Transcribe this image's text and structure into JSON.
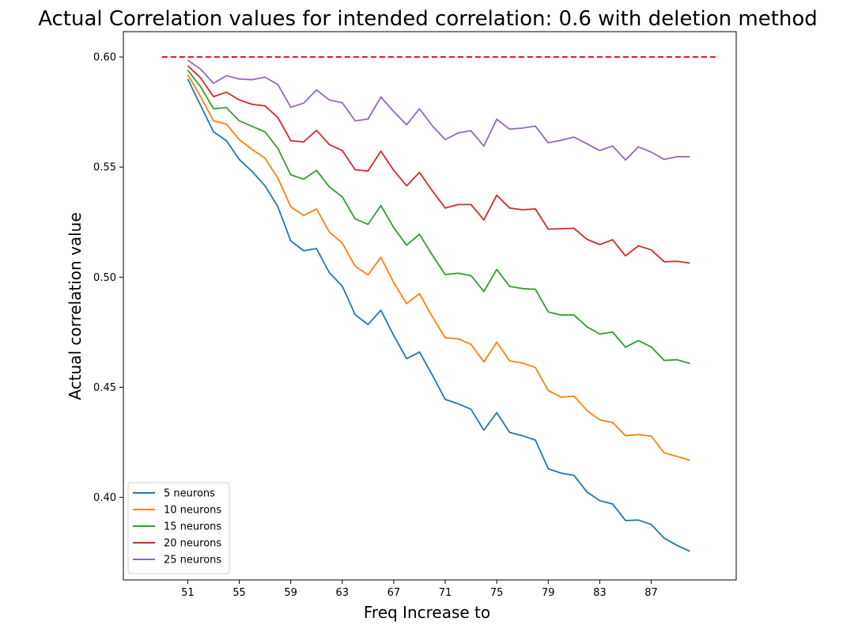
{
  "chart_data": {
    "type": "line",
    "title": "Actual Correlation values for intended correlation:  0.6 with deletion method",
    "xlabel": "Freq Increase to",
    "ylabel": "Actual correlation value",
    "xlim": [
      46,
      93.6
    ],
    "ylim": [
      0.3625,
      0.6115
    ],
    "x_ticks": [
      51,
      55,
      59,
      63,
      67,
      71,
      75,
      79,
      83,
      87
    ],
    "x_tick_labels": [
      "51",
      "55",
      "59",
      "63",
      "67",
      "71",
      "75",
      "79",
      "83",
      "87"
    ],
    "y_ticks": [
      0.4,
      0.45,
      0.5,
      0.55,
      0.6
    ],
    "y_tick_labels": [
      "0.40",
      "0.45",
      "0.50",
      "0.55",
      "0.60"
    ],
    "grid": false,
    "legend_position": "lower-left",
    "x": [
      51,
      52,
      53,
      54,
      55,
      56,
      57,
      58,
      59,
      60,
      61,
      62,
      63,
      64,
      65,
      66,
      67,
      68,
      69,
      70,
      71,
      72,
      73,
      74,
      75,
      76,
      77,
      78,
      79,
      80,
      81,
      82,
      83,
      84,
      85,
      86,
      87,
      88,
      89,
      90
    ],
    "reference_line": {
      "y": 0.6,
      "x_start": 49,
      "x_end": 92,
      "color": "#e31a1c",
      "style": "dashed"
    },
    "series": [
      {
        "name": "5 neurons",
        "color": "#1f77b4",
        "values": [
          0.59,
          0.578,
          0.566,
          0.562,
          0.5535,
          0.548,
          0.5415,
          0.532,
          0.5165,
          0.512,
          0.513,
          0.502,
          0.496,
          0.483,
          0.4785,
          0.485,
          0.4735,
          0.463,
          0.466,
          0.4555,
          0.4445,
          0.4425,
          0.44,
          0.4305,
          0.4385,
          0.4295,
          0.428,
          0.426,
          0.413,
          0.411,
          0.41,
          0.4025,
          0.3985,
          0.397,
          0.3895,
          0.3897,
          0.3877,
          0.3815,
          0.3782,
          0.3755
        ]
      },
      {
        "name": "10 neurons",
        "color": "#ff7f0e",
        "values": [
          0.592,
          0.582,
          0.571,
          0.5695,
          0.5625,
          0.558,
          0.554,
          0.545,
          0.532,
          0.528,
          0.531,
          0.5205,
          0.5155,
          0.505,
          0.501,
          0.509,
          0.4975,
          0.488,
          0.4925,
          0.482,
          0.4725,
          0.472,
          0.4695,
          0.4615,
          0.4705,
          0.462,
          0.461,
          0.459,
          0.4485,
          0.4455,
          0.446,
          0.4395,
          0.4352,
          0.434,
          0.428,
          0.4285,
          0.4278,
          0.4202,
          0.4186,
          0.4169
        ]
      },
      {
        "name": "15 neurons",
        "color": "#2ca02c",
        "values": [
          0.594,
          0.5865,
          0.5765,
          0.577,
          0.571,
          0.5685,
          0.566,
          0.5585,
          0.5465,
          0.5445,
          0.5485,
          0.541,
          0.5365,
          0.5265,
          0.524,
          0.5325,
          0.5225,
          0.5145,
          0.5195,
          0.51,
          0.5012,
          0.5018,
          0.5007,
          0.4935,
          0.5035,
          0.4958,
          0.4948,
          0.4945,
          0.4842,
          0.4828,
          0.4828,
          0.4775,
          0.4742,
          0.4751,
          0.4682,
          0.4712,
          0.4683,
          0.4622,
          0.4625,
          0.4608
        ]
      },
      {
        "name": "20 neurons",
        "color": "#d62728",
        "values": [
          0.596,
          0.5905,
          0.582,
          0.584,
          0.5805,
          0.5785,
          0.5778,
          0.5725,
          0.562,
          0.5614,
          0.5667,
          0.5602,
          0.5575,
          0.5488,
          0.5482,
          0.5572,
          0.5485,
          0.5415,
          0.5476,
          0.5392,
          0.5314,
          0.533,
          0.533,
          0.526,
          0.5372,
          0.5314,
          0.5306,
          0.531,
          0.5218,
          0.522,
          0.5222,
          0.5172,
          0.5148,
          0.517,
          0.5097,
          0.5142,
          0.5124,
          0.507,
          0.5072,
          0.5064
        ]
      },
      {
        "name": "25 neurons",
        "color": "#9467bd",
        "values": [
          0.5985,
          0.5945,
          0.588,
          0.5915,
          0.59,
          0.5897,
          0.5908,
          0.5875,
          0.5772,
          0.579,
          0.585,
          0.5805,
          0.5792,
          0.571,
          0.5718,
          0.5818,
          0.5752,
          0.5692,
          0.5765,
          0.5687,
          0.5625,
          0.5655,
          0.5665,
          0.5595,
          0.5717,
          0.5672,
          0.5677,
          0.5686,
          0.561,
          0.5622,
          0.5636,
          0.5606,
          0.5575,
          0.5596,
          0.5532,
          0.5592,
          0.5568,
          0.5535,
          0.5547,
          0.5547
        ]
      }
    ]
  }
}
